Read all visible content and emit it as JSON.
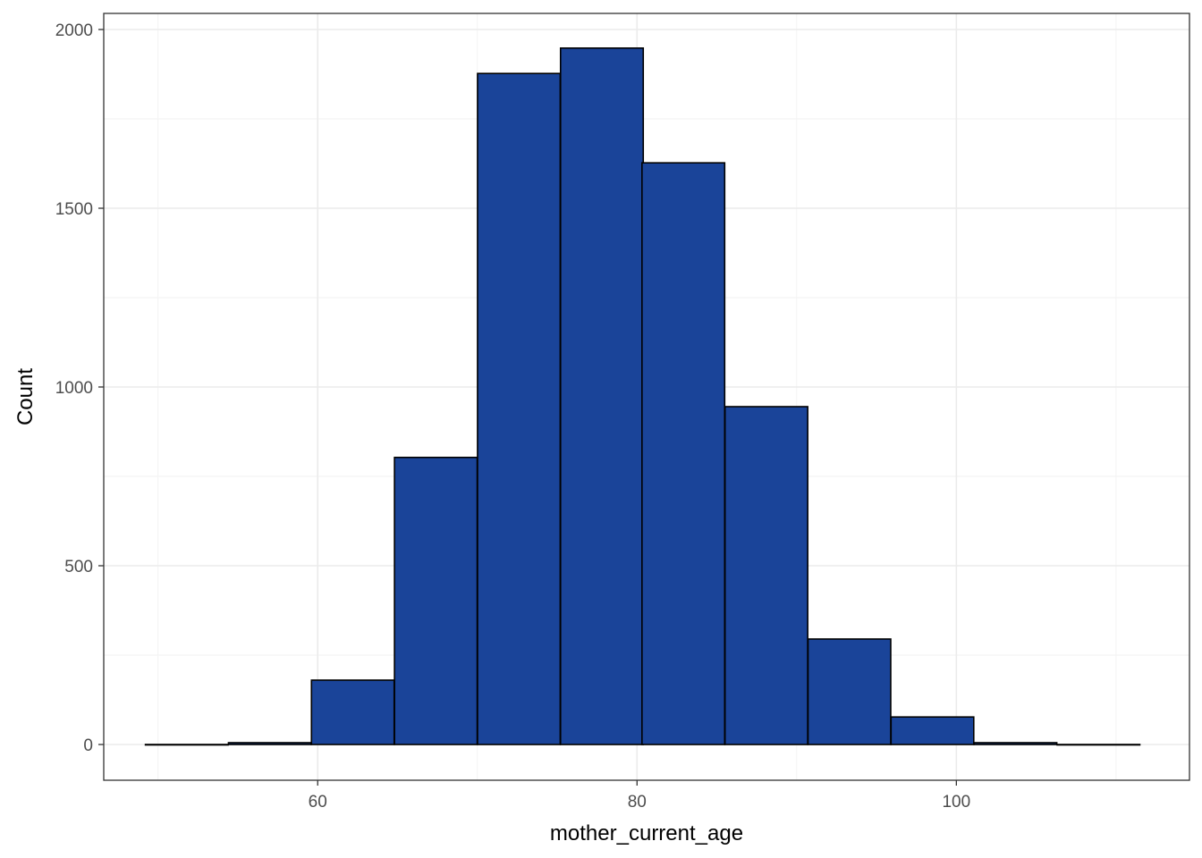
{
  "chart_data": {
    "type": "bar",
    "title": "",
    "xlabel": "mother_current_age",
    "ylabel": "Count",
    "bar_color": "#1a4499",
    "bar_outline": "#000000",
    "grid": true,
    "xlim": [
      46.6,
      114.6
    ],
    "ylim": [
      -100,
      2045
    ],
    "x_ticks": [
      60,
      80,
      100
    ],
    "x_tick_labels": [
      "60",
      "80",
      "100"
    ],
    "x_minor": [
      50,
      70,
      90,
      110
    ],
    "y_ticks": [
      0,
      500,
      1000,
      1500,
      2000
    ],
    "y_tick_labels": [
      "0",
      "500",
      "1000",
      "1500",
      "2000"
    ],
    "y_minor": [
      250,
      750,
      1250,
      1750
    ],
    "bin_width": 5.18,
    "bins": [
      {
        "center": 51.8,
        "count": 0
      },
      {
        "center": 57.0,
        "count": 5
      },
      {
        "center": 62.2,
        "count": 180
      },
      {
        "center": 67.4,
        "count": 803
      },
      {
        "center": 72.6,
        "count": 1877
      },
      {
        "center": 77.8,
        "count": 1948
      },
      {
        "center": 82.9,
        "count": 1627
      },
      {
        "center": 88.1,
        "count": 945
      },
      {
        "center": 93.3,
        "count": 295
      },
      {
        "center": 98.5,
        "count": 77
      },
      {
        "center": 103.7,
        "count": 5
      },
      {
        "center": 108.9,
        "count": 0
      }
    ]
  }
}
